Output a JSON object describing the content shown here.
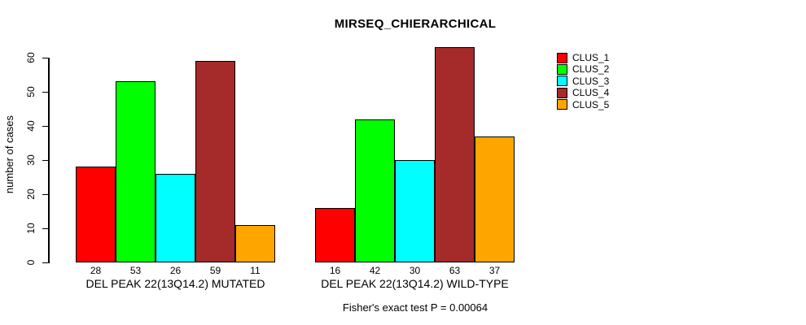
{
  "title": "MIRSEQ_CHIERARCHICAL",
  "ylabel": "number of cases",
  "footer": "Fisher's exact test P = 0.00064",
  "legend": {
    "position": "right",
    "items": [
      {
        "label": "CLUS_1",
        "color": "#ff0000"
      },
      {
        "label": "CLUS_2",
        "color": "#00ff00"
      },
      {
        "label": "CLUS_3",
        "color": "#00ffff"
      },
      {
        "label": "CLUS_4",
        "color": "#a52a2a"
      },
      {
        "label": "CLUS_5",
        "color": "#ffa500"
      }
    ]
  },
  "chart_data": {
    "type": "bar",
    "title": "MIRSEQ_CHIERARCHICAL",
    "xlabel": "",
    "ylabel": "number of cases",
    "ylim": [
      0,
      60
    ],
    "yticks": [
      0,
      10,
      20,
      30,
      40,
      50,
      60
    ],
    "grid": false,
    "legend_position": "right",
    "series_names": [
      "CLUS_1",
      "CLUS_2",
      "CLUS_3",
      "CLUS_4",
      "CLUS_5"
    ],
    "series_colors": [
      "#ff0000",
      "#00ff00",
      "#00ffff",
      "#a52a2a",
      "#ffa500"
    ],
    "groups": [
      {
        "label": "DEL PEAK 22(13Q14.2) MUTATED",
        "values": [
          28,
          53,
          26,
          59,
          11
        ]
      },
      {
        "label": "DEL PEAK 22(13Q14.2) WILD-TYPE",
        "values": [
          16,
          42,
          30,
          63,
          37
        ]
      }
    ],
    "bar_value_labels_shown": true,
    "annotation": "Fisher's exact test P = 0.00064"
  }
}
